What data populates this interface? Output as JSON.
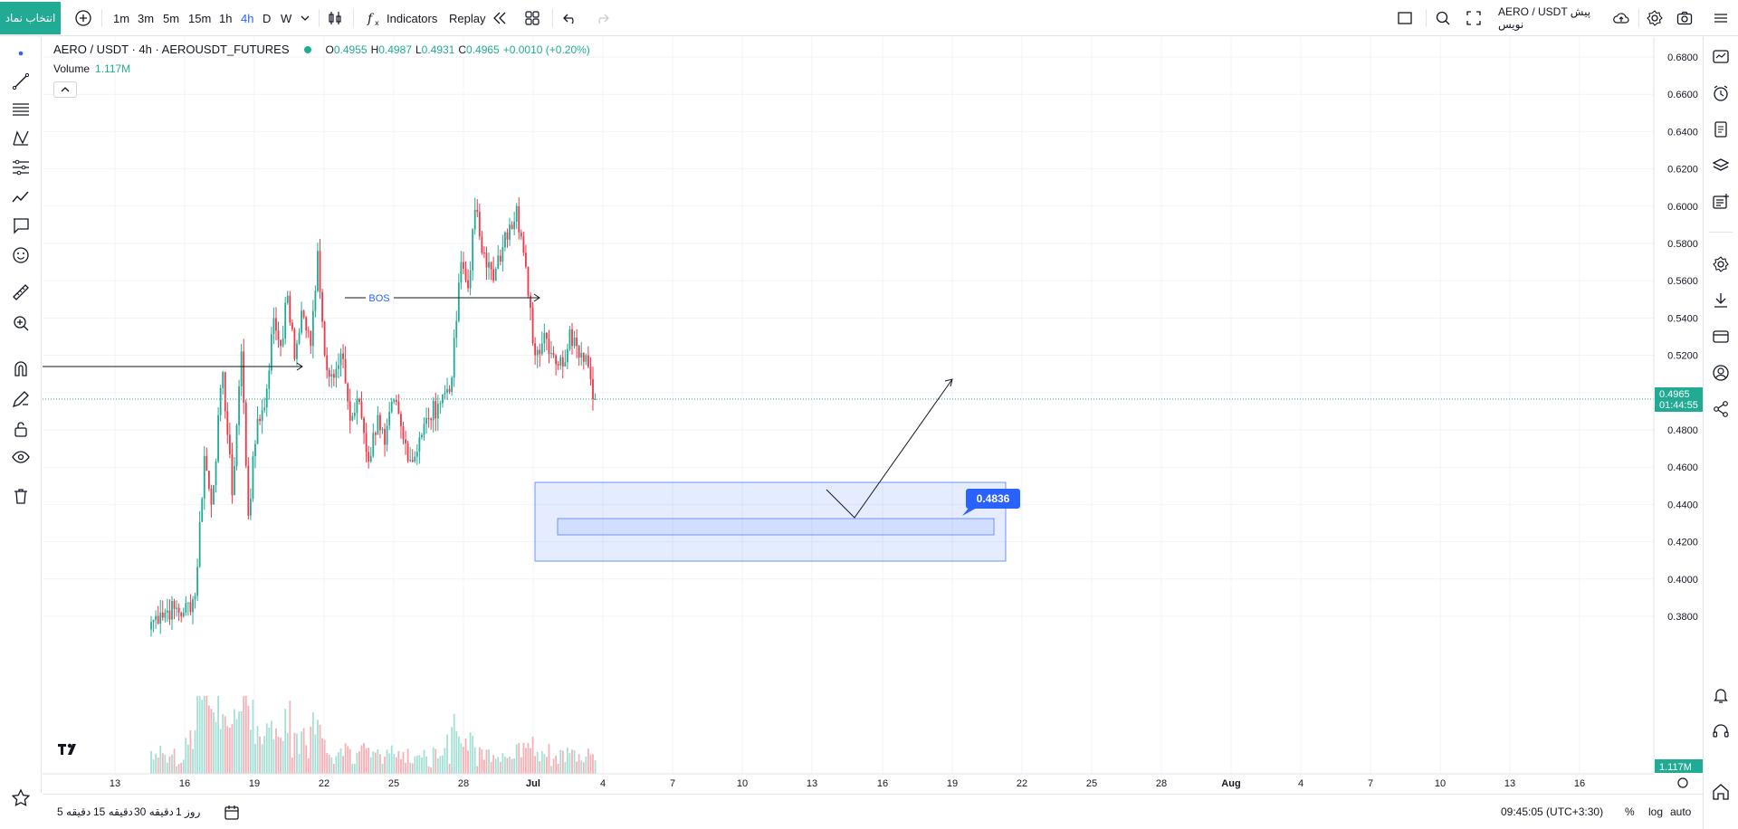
{
  "toolbar": {
    "symbol_button": "انتخاب نماد",
    "intervals": [
      "1m",
      "3m",
      "5m",
      "15m",
      "1h",
      "4h",
      "D",
      "W"
    ],
    "active_interval": "4h",
    "indicators_label": "Indicators",
    "replay_label": "Replay",
    "title": "AERO / USDT پیش نویس"
  },
  "legend": {
    "symbol": "AERO / USDT · 4h · AEROUSDT_FUTURES",
    "open_label": "O",
    "open": "0.4955",
    "high_label": "H",
    "high": "0.4987",
    "low_label": "L",
    "low": "0.4931",
    "close_label": "C",
    "close": "0.4965",
    "change": "+0.0010 (+0.20%)",
    "volume_label": "Volume",
    "volume": "1.117M"
  },
  "bottom": {
    "ranges": [
      "5 دقیقه",
      "15 دقیقه",
      "30 دقیقه",
      "1 روز"
    ],
    "time": "09:45:05 (UTC+3:30)",
    "percent": "%",
    "log": "log",
    "auto": "auto"
  },
  "colors": {
    "up": "#22ab94",
    "down": "#f23645",
    "accent": "#2962ff"
  },
  "chart_data": {
    "type": "candlestick",
    "symbol": "AERO / USDT",
    "interval": "4h",
    "y_ticks": [
      "0.3800",
      "0.4000",
      "0.4200",
      "0.4400",
      "0.4600",
      "0.4800",
      "0.5000",
      "0.5200",
      "0.5400",
      "0.5600",
      "0.5800",
      "0.6000",
      "0.6200",
      "0.6400",
      "0.6600",
      "0.6800"
    ],
    "ylim": [
      0.37,
      0.69
    ],
    "x_ticks": [
      "13",
      "16",
      "19",
      "22",
      "25",
      "28",
      "Jul",
      "4",
      "7",
      "10",
      "13",
      "16",
      "19",
      "22",
      "25",
      "28",
      "Aug",
      "4",
      "7",
      "10",
      "13",
      "16"
    ],
    "last_price": "0.4965",
    "countdown": "01:44:55",
    "volume_last": "1.117M",
    "annotations": {
      "bos_label": "BOS",
      "target_price": "0.4836"
    },
    "pivots": [
      {
        "c": 0,
        "p": 0.377
      },
      {
        "c": 4,
        "p": 0.382
      },
      {
        "c": 10,
        "p": 0.384
      },
      {
        "c": 14,
        "p": 0.382
      },
      {
        "c": 19,
        "p": 0.391
      },
      {
        "c": 23,
        "p": 0.466
      },
      {
        "c": 26,
        "p": 0.44
      },
      {
        "c": 31,
        "p": 0.511
      },
      {
        "c": 35,
        "p": 0.445
      },
      {
        "c": 39,
        "p": 0.522
      },
      {
        "c": 42,
        "p": 0.434
      },
      {
        "c": 46,
        "p": 0.486
      },
      {
        "c": 49,
        "p": 0.492
      },
      {
        "c": 53,
        "p": 0.54
      },
      {
        "c": 56,
        "p": 0.525
      },
      {
        "c": 59,
        "p": 0.552
      },
      {
        "c": 62,
        "p": 0.518
      },
      {
        "c": 65,
        "p": 0.544
      },
      {
        "c": 69,
        "p": 0.525
      },
      {
        "c": 72,
        "p": 0.576
      },
      {
        "c": 75,
        "p": 0.52
      },
      {
        "c": 79,
        "p": 0.508
      },
      {
        "c": 83,
        "p": 0.518
      },
      {
        "c": 86,
        "p": 0.485
      },
      {
        "c": 90,
        "p": 0.495
      },
      {
        "c": 94,
        "p": 0.463
      },
      {
        "c": 98,
        "p": 0.488
      },
      {
        "c": 101,
        "p": 0.472
      },
      {
        "c": 105,
        "p": 0.496
      },
      {
        "c": 109,
        "p": 0.475
      },
      {
        "c": 113,
        "p": 0.463
      },
      {
        "c": 116,
        "p": 0.476
      },
      {
        "c": 120,
        "p": 0.486
      },
      {
        "c": 124,
        "p": 0.494
      },
      {
        "c": 127,
        "p": 0.5
      },
      {
        "c": 130,
        "p": 0.508
      },
      {
        "c": 134,
        "p": 0.57
      },
      {
        "c": 137,
        "p": 0.556
      },
      {
        "c": 140,
        "p": 0.598
      },
      {
        "c": 144,
        "p": 0.575
      },
      {
        "c": 148,
        "p": 0.56
      },
      {
        "c": 152,
        "p": 0.578
      },
      {
        "c": 155,
        "p": 0.59
      },
      {
        "c": 158,
        "p": 0.6
      },
      {
        "c": 161,
        "p": 0.575
      },
      {
        "c": 163,
        "p": 0.552
      },
      {
        "c": 166,
        "p": 0.52
      },
      {
        "c": 170,
        "p": 0.532
      },
      {
        "c": 174,
        "p": 0.52
      },
      {
        "c": 178,
        "p": 0.514
      },
      {
        "c": 181,
        "p": 0.534
      },
      {
        "c": 184,
        "p": 0.525
      },
      {
        "c": 188,
        "p": 0.52
      },
      {
        "c": 192,
        "p": 0.4965
      }
    ]
  }
}
